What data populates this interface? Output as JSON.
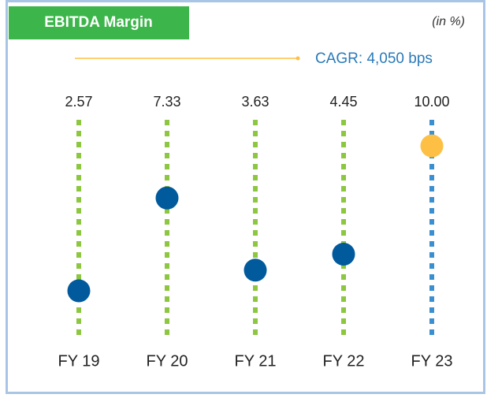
{
  "chart_data": {
    "type": "dot",
    "title": "EBITDA Margin",
    "subtitle": "(in %)",
    "annotation": "CAGR: 4,050 bps",
    "categories": [
      "FY 19",
      "FY 20",
      "FY 21",
      "FY 22",
      "FY 23"
    ],
    "values": [
      2.57,
      7.33,
      3.63,
      4.45,
      10
    ],
    "value_labels": [
      "2.57",
      "7.33",
      "3.63",
      "4.45",
      "10.00"
    ],
    "point_colors": [
      "#005a9c",
      "#005a9c",
      "#005a9c",
      "#005a9c",
      "#fdc045"
    ],
    "stem_colors": [
      "#8dc63f",
      "#8dc63f",
      "#8dc63f",
      "#8dc63f",
      "#3a8fd0"
    ],
    "ylim": [
      0,
      11.5
    ]
  }
}
